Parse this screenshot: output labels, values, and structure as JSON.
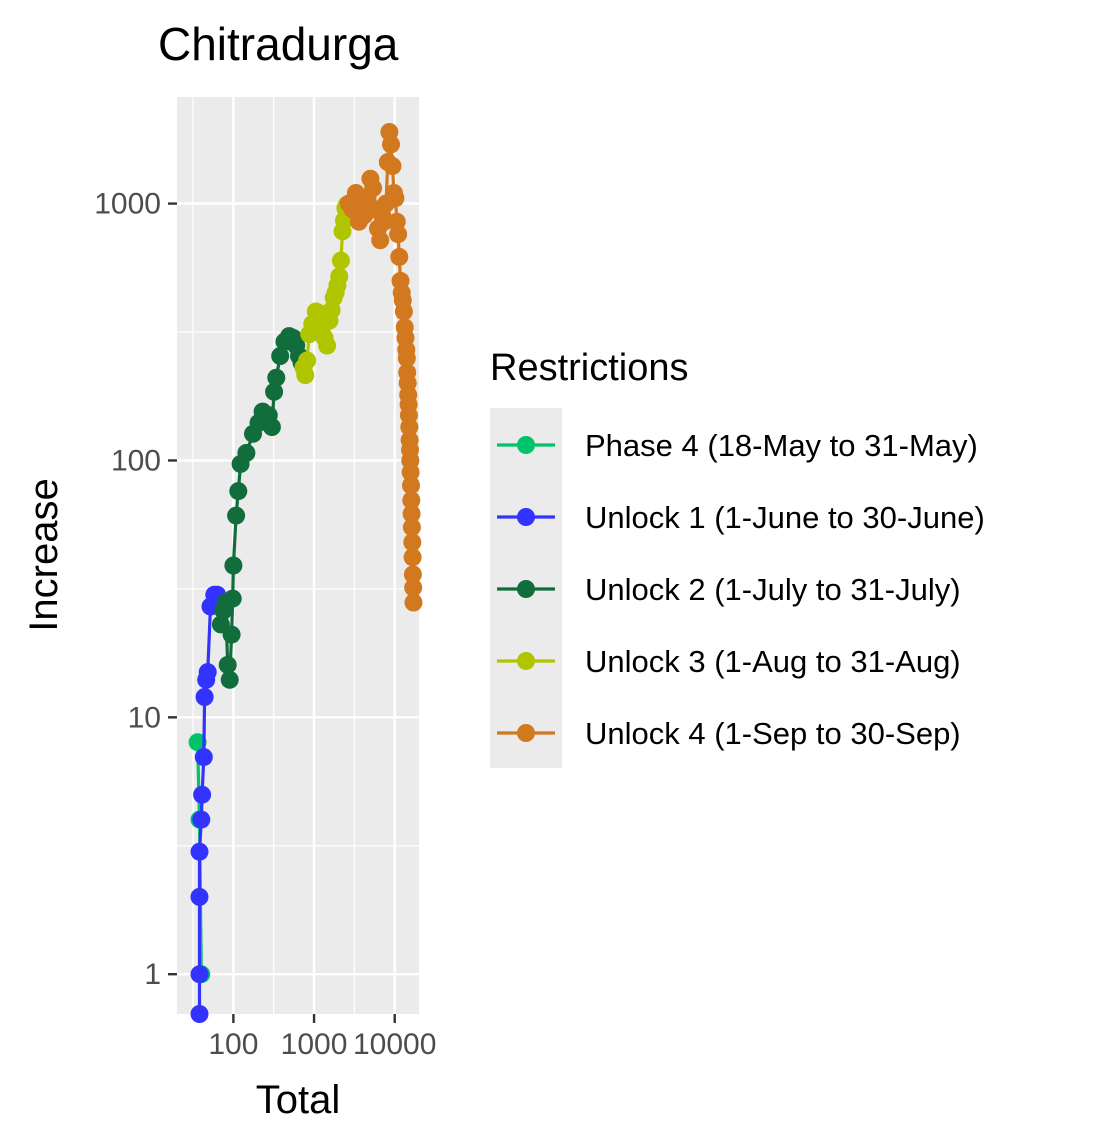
{
  "chart_data": {
    "type": "line",
    "title": "Chitradurga",
    "xlabel": "Total",
    "ylabel": "Increase",
    "x_scale": "log10",
    "y_scale": "log10",
    "xlim": [
      20,
      20000
    ],
    "ylim": [
      0.7,
      2600
    ],
    "x_ticks": [
      {
        "value": 100,
        "label": "100"
      },
      {
        "value": 1000,
        "label": "1000"
      },
      {
        "value": 10000,
        "label": "10000"
      }
    ],
    "y_ticks": [
      {
        "value": 1,
        "label": "1"
      },
      {
        "value": 10,
        "label": "10"
      },
      {
        "value": 100,
        "label": "100"
      },
      {
        "value": 1000,
        "label": "1000"
      }
    ],
    "grid": true,
    "legend_title": "Restrictions",
    "legend_position": "right",
    "series": [
      {
        "name": "Phase 4 (18-May to 31-May)",
        "color": "#00c46a",
        "points": [
          [
            36,
            8
          ],
          [
            38,
            4
          ],
          [
            40,
            1
          ]
        ]
      },
      {
        "name": "Unlock 1 (1-June to 30-June)",
        "color": "#3333ff",
        "points": [
          [
            38,
            0.7
          ],
          [
            38,
            1
          ],
          [
            38,
            2
          ],
          [
            38,
            3
          ],
          [
            40,
            4
          ],
          [
            41,
            5
          ],
          [
            43,
            7
          ],
          [
            44,
            12
          ],
          [
            46,
            14
          ],
          [
            48,
            15
          ],
          [
            52,
            27
          ],
          [
            58,
            30
          ],
          [
            63,
            30
          ]
        ]
      },
      {
        "name": "Unlock 2 (1-July to 31-July)",
        "color": "#116d3c",
        "points": [
          [
            70,
            23
          ],
          [
            75,
            26
          ],
          [
            80,
            28
          ],
          [
            85,
            16
          ],
          [
            90,
            14
          ],
          [
            95,
            21
          ],
          [
            98,
            29
          ],
          [
            100,
            39
          ],
          [
            108,
            61
          ],
          [
            115,
            76
          ],
          [
            123,
            97
          ],
          [
            145,
            107
          ],
          [
            175,
            127
          ],
          [
            205,
            140
          ],
          [
            230,
            155
          ],
          [
            255,
            145
          ],
          [
            275,
            150
          ],
          [
            300,
            135
          ],
          [
            320,
            185
          ],
          [
            340,
            210
          ],
          [
            380,
            255
          ],
          [
            430,
            290
          ],
          [
            490,
            305
          ],
          [
            550,
            300
          ],
          [
            600,
            280
          ],
          [
            650,
            255
          ],
          [
            700,
            240
          ]
        ]
      },
      {
        "name": "Unlock 3 (1-Aug to 31-Aug)",
        "color": "#b0c400",
        "points": [
          [
            740,
            230
          ],
          [
            780,
            215
          ],
          [
            820,
            245
          ],
          [
            870,
            310
          ],
          [
            950,
            340
          ],
          [
            1050,
            380
          ],
          [
            1150,
            375
          ],
          [
            1250,
            330
          ],
          [
            1350,
            300
          ],
          [
            1450,
            280
          ],
          [
            1550,
            350
          ],
          [
            1650,
            385
          ],
          [
            1750,
            430
          ],
          [
            1850,
            450
          ],
          [
            1950,
            480
          ],
          [
            2050,
            520
          ],
          [
            2150,
            600
          ],
          [
            2250,
            780
          ],
          [
            2350,
            860
          ],
          [
            2450,
            960
          ],
          [
            2550,
            990
          ]
        ]
      },
      {
        "name": "Unlock 4 (1-Sep to 30-Sep)",
        "color": "#d2781e",
        "points": [
          [
            2700,
            1000
          ],
          [
            3000,
            950
          ],
          [
            3300,
            1100
          ],
          [
            3600,
            850
          ],
          [
            3900,
            1000
          ],
          [
            4200,
            900
          ],
          [
            4600,
            1050
          ],
          [
            5000,
            1250
          ],
          [
            5400,
            1150
          ],
          [
            5800,
            950
          ],
          [
            6200,
            800
          ],
          [
            6600,
            720
          ],
          [
            7000,
            900
          ],
          [
            7400,
            850
          ],
          [
            7800,
            1000
          ],
          [
            8200,
            1450
          ],
          [
            8600,
            1900
          ],
          [
            9000,
            1700
          ],
          [
            9400,
            1400
          ],
          [
            9800,
            1100
          ],
          [
            10200,
            1050
          ],
          [
            10600,
            850
          ],
          [
            11000,
            760
          ],
          [
            11400,
            620
          ],
          [
            11800,
            500
          ],
          [
            12200,
            450
          ],
          [
            12600,
            420
          ],
          [
            13000,
            380
          ],
          [
            13300,
            330
          ],
          [
            13600,
            300
          ],
          [
            13900,
            270
          ],
          [
            14100,
            250
          ],
          [
            14300,
            220
          ],
          [
            14500,
            200
          ],
          [
            14700,
            180
          ],
          [
            14850,
            165
          ],
          [
            15000,
            150
          ],
          [
            15150,
            135
          ],
          [
            15300,
            120
          ],
          [
            15450,
            110
          ],
          [
            15600,
            100
          ],
          [
            15750,
            90
          ],
          [
            15900,
            80
          ],
          [
            16050,
            70
          ],
          [
            16200,
            62
          ],
          [
            16350,
            55
          ],
          [
            16500,
            48
          ],
          [
            16650,
            42
          ],
          [
            16800,
            36
          ],
          [
            16950,
            32
          ],
          [
            17100,
            28
          ]
        ]
      }
    ]
  }
}
